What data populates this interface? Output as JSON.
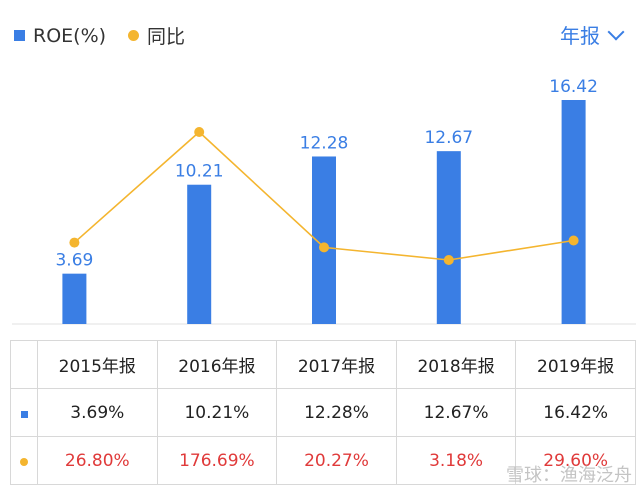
{
  "legend": {
    "roe_label": "ROE(%)",
    "yoy_label": "同比"
  },
  "period_selector": "年报",
  "colors": {
    "bar": "#3a7ee4",
    "line": "#f4b52f",
    "negative_text": "#e03a3a"
  },
  "chart_data": {
    "type": "bar",
    "categories": [
      "2015年报",
      "2016年报",
      "2017年报",
      "2018年报",
      "2019年报"
    ],
    "series": [
      {
        "name": "ROE(%)",
        "type": "bar",
        "values": [
          3.69,
          10.21,
          12.28,
          12.67,
          16.42
        ]
      },
      {
        "name": "同比",
        "type": "line",
        "values": [
          26.8,
          176.69,
          20.27,
          3.18,
          29.6
        ]
      }
    ]
  },
  "table": {
    "headers": [
      "2015年报",
      "2016年报",
      "2017年报",
      "2018年报",
      "2019年报"
    ],
    "roe_row": [
      "3.69%",
      "10.21%",
      "12.28%",
      "12.67%",
      "16.42%"
    ],
    "yoy_row": [
      "26.80%",
      "176.69%",
      "20.27%",
      "3.18%",
      "29.60%"
    ]
  },
  "watermark": "雪球：渔海泛舟"
}
